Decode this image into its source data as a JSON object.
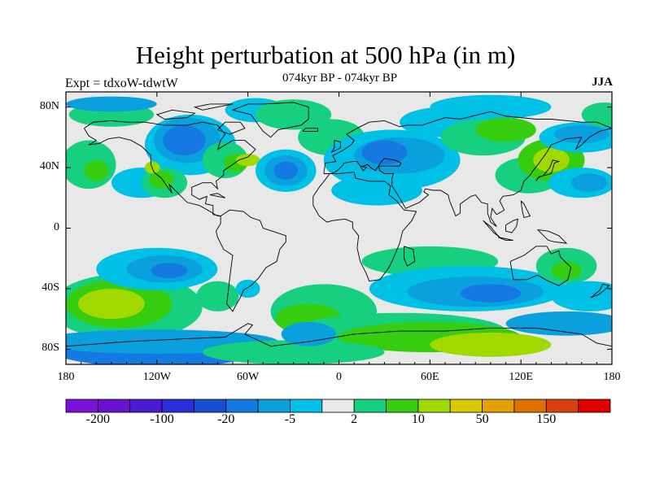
{
  "title": "Height perturbation at 500 hPa (in m)",
  "subtitle": "074kyr BP - 074kyr BP",
  "left_label": "Expt = tdxoW-tdwtW",
  "right_label": "JJA",
  "map": {
    "projection": "cylindrical-equidistant",
    "lon_range": [
      -180,
      180
    ],
    "lat_range": [
      -90,
      90
    ],
    "x_ticks": [
      {
        "lon": -180,
        "label": "180"
      },
      {
        "lon": -120,
        "label": "120W"
      },
      {
        "lon": -60,
        "label": "60W"
      },
      {
        "lon": 0,
        "label": "0"
      },
      {
        "lon": 60,
        "label": "60E"
      },
      {
        "lon": 120,
        "label": "120E"
      },
      {
        "lon": 180,
        "label": "180"
      }
    ],
    "y_ticks": [
      {
        "lat": 80,
        "label": "80N"
      },
      {
        "lat": 40,
        "label": "40N"
      },
      {
        "lat": 0,
        "label": "0"
      },
      {
        "lat": -40,
        "label": "40S"
      },
      {
        "lat": -80,
        "label": "80S"
      }
    ],
    "background_color": "#e8e8e8"
  },
  "colorbar": {
    "colors": [
      "#7a12d8",
      "#6a10d0",
      "#4b1bd2",
      "#2b2ed8",
      "#1650d0",
      "#1479e0",
      "#0aa0de",
      "#00c0e6",
      "#e8e8e8",
      "#16d080",
      "#36cc10",
      "#a0d800",
      "#d8c800",
      "#e4a000",
      "#e07000",
      "#d84010",
      "#e00000"
    ],
    "labels": [
      {
        "after_box": 1,
        "text": "-200"
      },
      {
        "after_box": 3,
        "text": "-100"
      },
      {
        "after_box": 5,
        "text": "-20"
      },
      {
        "after_box": 7,
        "text": "-5"
      },
      {
        "after_box": 9,
        "text": "2"
      },
      {
        "after_box": 11,
        "text": "10"
      },
      {
        "after_box": 13,
        "text": "50"
      },
      {
        "after_box": 15,
        "text": "150"
      }
    ]
  },
  "chart_data": {
    "type": "heatmap",
    "title": "Height perturbation at 500 hPa (in m)",
    "field": "500 hPa height perturbation (m), 074kyr BP - 074kyr BP, JJA",
    "units": "m",
    "color_levels": [
      -200,
      -150,
      -100,
      -50,
      -20,
      -10,
      -5,
      -2,
      2,
      5,
      10,
      20,
      50,
      100,
      150,
      200
    ],
    "approx_features": [
      {
        "name": "north-america-low",
        "lon": -100,
        "lat": 55,
        "rx": 30,
        "ry": 20,
        "value": -20
      },
      {
        "name": "north-atlantic-low",
        "lon": -37,
        "lat": 38,
        "rx": 15,
        "ry": 10,
        "value": -20
      },
      {
        "name": "eurasia-low",
        "lon": 30,
        "lat": 45,
        "rx": 35,
        "ry": 18,
        "value": -5
      },
      {
        "name": "japan-high",
        "lon": 140,
        "lat": 45,
        "rx": 20,
        "ry": 12,
        "value": 10
      },
      {
        "name": "south-pacific-high",
        "lon": -150,
        "lat": -50,
        "rx": 30,
        "ry": 14,
        "value": 10
      },
      {
        "name": "south-pacific-low",
        "lon": -115,
        "lat": -25,
        "rx": 25,
        "ry": 10,
        "value": -20
      },
      {
        "name": "indian-ocean-low",
        "lon": 90,
        "lat": -40,
        "rx": 40,
        "ry": 15,
        "value": -20
      },
      {
        "name": "antarctic-high",
        "lon": 100,
        "lat": -75,
        "rx": 80,
        "ry": 10,
        "value": 10
      },
      {
        "name": "alaska-high",
        "lon": -160,
        "lat": 75,
        "rx": 25,
        "ry": 10,
        "value": 5
      }
    ]
  }
}
